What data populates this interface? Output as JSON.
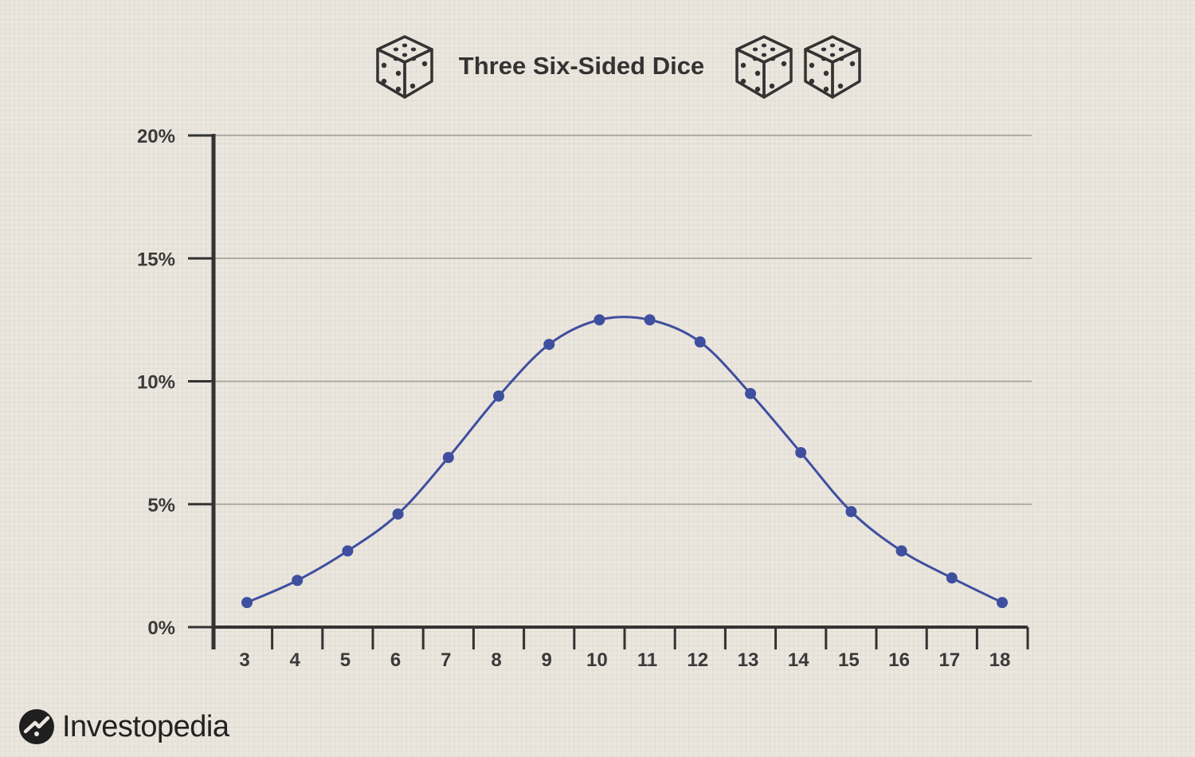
{
  "brand": {
    "name": "Investopedia",
    "logo_icon": "investopedia-logo-icon"
  },
  "colors": {
    "line": "#3f4f9f",
    "axis": "#333333",
    "grid": "#9e9a96",
    "text": "#3a3a3a"
  },
  "chart_data": {
    "type": "line",
    "title": "Three Six-Sided Dice",
    "title_icons": [
      "die-icon",
      "die-icon",
      "die-icon"
    ],
    "xlabel": "",
    "ylabel": "",
    "x": [
      3,
      4,
      5,
      6,
      7,
      8,
      9,
      10,
      11,
      12,
      13,
      14,
      15,
      16,
      17,
      18
    ],
    "series": [
      {
        "values": [
          1.0,
          1.9,
          3.1,
          4.6,
          6.9,
          9.4,
          11.5,
          12.5,
          12.5,
          11.6,
          9.5,
          7.1,
          4.7,
          3.1,
          2.0,
          1.0
        ]
      }
    ],
    "yticks": [
      "0%",
      "5%",
      "10%",
      "15%",
      "20%"
    ],
    "ylim": [
      0,
      20
    ],
    "grid": "horizontal",
    "markers": true,
    "smooth": true
  }
}
